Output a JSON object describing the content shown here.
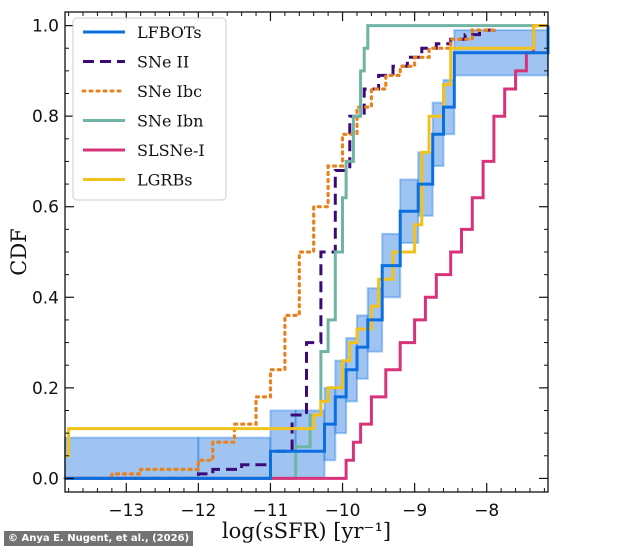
{
  "credit": "© Anya E. Nugent, et al., (2026)",
  "chart_data": {
    "type": "line",
    "subtype": "step-cdf",
    "title": "",
    "xlabel": "log(sSFR) [yr⁻¹]",
    "ylabel": "CDF",
    "xlim": [
      -13.85,
      -7.15
    ],
    "ylim": [
      -0.03,
      1.03
    ],
    "xticks": [
      -13,
      -12,
      -11,
      -10,
      -9,
      -8
    ],
    "xtick_labels": [
      "−13",
      "−12",
      "−11",
      "−10",
      "−9",
      "−8"
    ],
    "yticks": [
      0.0,
      0.2,
      0.4,
      0.6,
      0.8,
      1.0
    ],
    "ytick_labels": [
      "0.0",
      "0.2",
      "0.4",
      "0.6",
      "0.8",
      "1.0"
    ],
    "grid": false,
    "legend_position": "top-left",
    "series": [
      {
        "name": "LFBOTs",
        "style": "solid",
        "color": "#0b6fe0",
        "band_color": "#7fb0ec",
        "x": [
          -13.85,
          -12.0,
          -11.0,
          -10.65,
          -10.25,
          -10.1,
          -9.95,
          -9.8,
          -9.65,
          -9.45,
          -9.2,
          -8.95,
          -8.75,
          -8.6,
          -8.45,
          -7.15
        ],
        "y": [
          0.0,
          0.0,
          0.06,
          0.06,
          0.12,
          0.18,
          0.24,
          0.29,
          0.35,
          0.47,
          0.59,
          0.65,
          0.76,
          0.82,
          0.94,
          1.0
        ],
        "band": [
          0.09,
          0.09,
          0.09,
          0.09,
          0.08,
          0.08,
          0.07,
          0.07,
          0.07,
          0.07,
          0.07,
          0.07,
          0.07,
          0.06,
          0.05,
          0.0
        ]
      },
      {
        "name": "SNe II",
        "style": "dashed",
        "color": "#3c0a78",
        "x": [
          -13.85,
          -12.4,
          -12.0,
          -11.8,
          -11.4,
          -11.0,
          -10.7,
          -10.5,
          -10.3,
          -10.1,
          -9.9,
          -9.7,
          -9.5,
          -9.3,
          -9.1,
          -8.9,
          -8.7,
          -8.5,
          -8.3,
          -8.1,
          -7.9
        ],
        "y": [
          0.0,
          0.0,
          0.01,
          0.02,
          0.03,
          0.06,
          0.14,
          0.3,
          0.5,
          0.68,
          0.8,
          0.86,
          0.89,
          0.91,
          0.93,
          0.95,
          0.96,
          0.97,
          0.98,
          0.99,
          1.0
        ]
      },
      {
        "name": "SNe Ibc",
        "style": "dotted",
        "color": "#e8821e",
        "x": [
          -13.85,
          -13.2,
          -12.8,
          -12.2,
          -12.0,
          -11.8,
          -11.5,
          -11.2,
          -11.0,
          -10.8,
          -10.6,
          -10.4,
          -10.2,
          -10.0,
          -9.8,
          -9.6,
          -9.4,
          -9.2,
          -9.0,
          -8.8,
          -8.5,
          -8.2,
          -7.9
        ],
        "y": [
          0.0,
          0.01,
          0.02,
          0.02,
          0.04,
          0.08,
          0.12,
          0.18,
          0.24,
          0.36,
          0.5,
          0.6,
          0.69,
          0.76,
          0.82,
          0.86,
          0.89,
          0.91,
          0.93,
          0.95,
          0.97,
          0.99,
          1.0
        ]
      },
      {
        "name": "SNe Ibn",
        "style": "solid",
        "color": "#6fb4a4",
        "x": [
          -13.85,
          -11.1,
          -10.65,
          -10.45,
          -10.3,
          -10.2,
          -10.1,
          -10.0,
          -9.95,
          -9.85,
          -9.75,
          -9.7,
          -9.65,
          -7.15
        ],
        "y": [
          0.0,
          0.0,
          0.07,
          0.14,
          0.28,
          0.35,
          0.5,
          0.62,
          0.7,
          0.8,
          0.9,
          0.95,
          1.0,
          1.0
        ]
      },
      {
        "name": "SLSNe-I",
        "style": "solid",
        "color": "#d6337a",
        "x": [
          -13.85,
          -10.1,
          -9.95,
          -9.85,
          -9.75,
          -9.6,
          -9.4,
          -9.2,
          -9.0,
          -8.85,
          -8.7,
          -8.5,
          -8.35,
          -8.2,
          -8.05,
          -7.9,
          -7.75,
          -7.6,
          -7.45,
          -7.35,
          -7.15
        ],
        "y": [
          0.0,
          0.0,
          0.04,
          0.08,
          0.12,
          0.18,
          0.24,
          0.3,
          0.35,
          0.4,
          0.45,
          0.5,
          0.55,
          0.62,
          0.7,
          0.8,
          0.86,
          0.9,
          0.94,
          1.0,
          1.0
        ]
      },
      {
        "name": "LGRBs",
        "style": "solid",
        "color": "#f2c21b",
        "x": [
          -13.85,
          -13.8,
          -10.5,
          -10.4,
          -10.3,
          -10.2,
          -10.0,
          -9.9,
          -9.8,
          -9.6,
          -9.5,
          -9.3,
          -9.0,
          -8.9,
          -8.8,
          -8.6,
          -8.5,
          -7.35,
          -7.15
        ],
        "y": [
          0.05,
          0.11,
          0.11,
          0.14,
          0.17,
          0.2,
          0.26,
          0.3,
          0.33,
          0.38,
          0.44,
          0.5,
          0.56,
          0.72,
          0.8,
          0.87,
          0.95,
          1.0,
          1.0
        ]
      }
    ]
  }
}
